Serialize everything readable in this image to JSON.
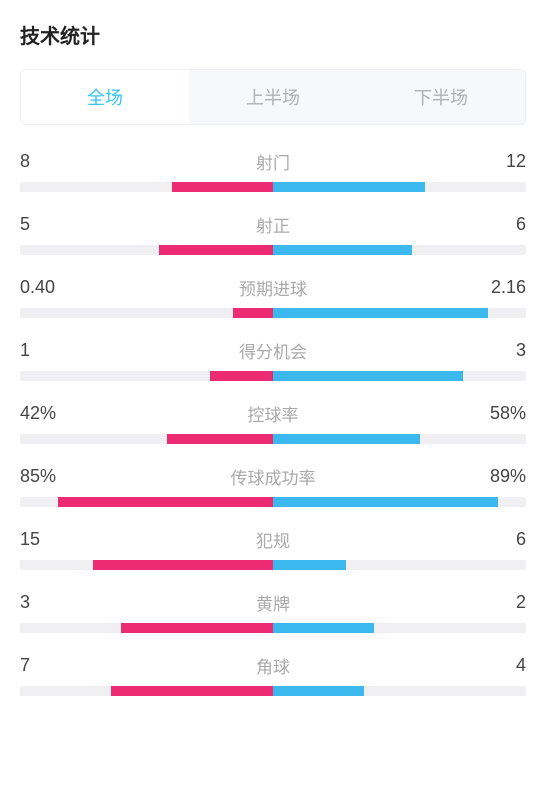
{
  "title": "技术统计",
  "colors": {
    "left_bar": "#ec2b72",
    "right_bar": "#3bb8ee",
    "track": "#f0f0f2",
    "tab_active_text": "#34c5f0",
    "tab_inactive_text": "#b0b0b0",
    "tab_inactive_bg": "#f7f8f9",
    "label_text": "#aaaaaa",
    "value_text": "#444444",
    "title_text": "#222222"
  },
  "tabs": [
    {
      "label": "全场",
      "active": true
    },
    {
      "label": "上半场",
      "active": false
    },
    {
      "label": "下半场",
      "active": false
    }
  ],
  "stats": [
    {
      "label": "射门",
      "left_display": "8",
      "right_display": "12",
      "left_pct": 40,
      "right_pct": 60
    },
    {
      "label": "射正",
      "left_display": "5",
      "right_display": "6",
      "left_pct": 45,
      "right_pct": 55
    },
    {
      "label": "预期进球",
      "left_display": "0.40",
      "right_display": "2.16",
      "left_pct": 16,
      "right_pct": 85
    },
    {
      "label": "得分机会",
      "left_display": "1",
      "right_display": "3",
      "left_pct": 25,
      "right_pct": 75
    },
    {
      "label": "控球率",
      "left_display": "42%",
      "right_display": "58%",
      "left_pct": 42,
      "right_pct": 58
    },
    {
      "label": "传球成功率",
      "left_display": "85%",
      "right_display": "89%",
      "left_pct": 85,
      "right_pct": 89
    },
    {
      "label": "犯规",
      "left_display": "15",
      "right_display": "6",
      "left_pct": 71,
      "right_pct": 29
    },
    {
      "label": "黄牌",
      "left_display": "3",
      "right_display": "2",
      "left_pct": 60,
      "right_pct": 40
    },
    {
      "label": "角球",
      "left_display": "7",
      "right_display": "4",
      "left_pct": 64,
      "right_pct": 36
    }
  ]
}
